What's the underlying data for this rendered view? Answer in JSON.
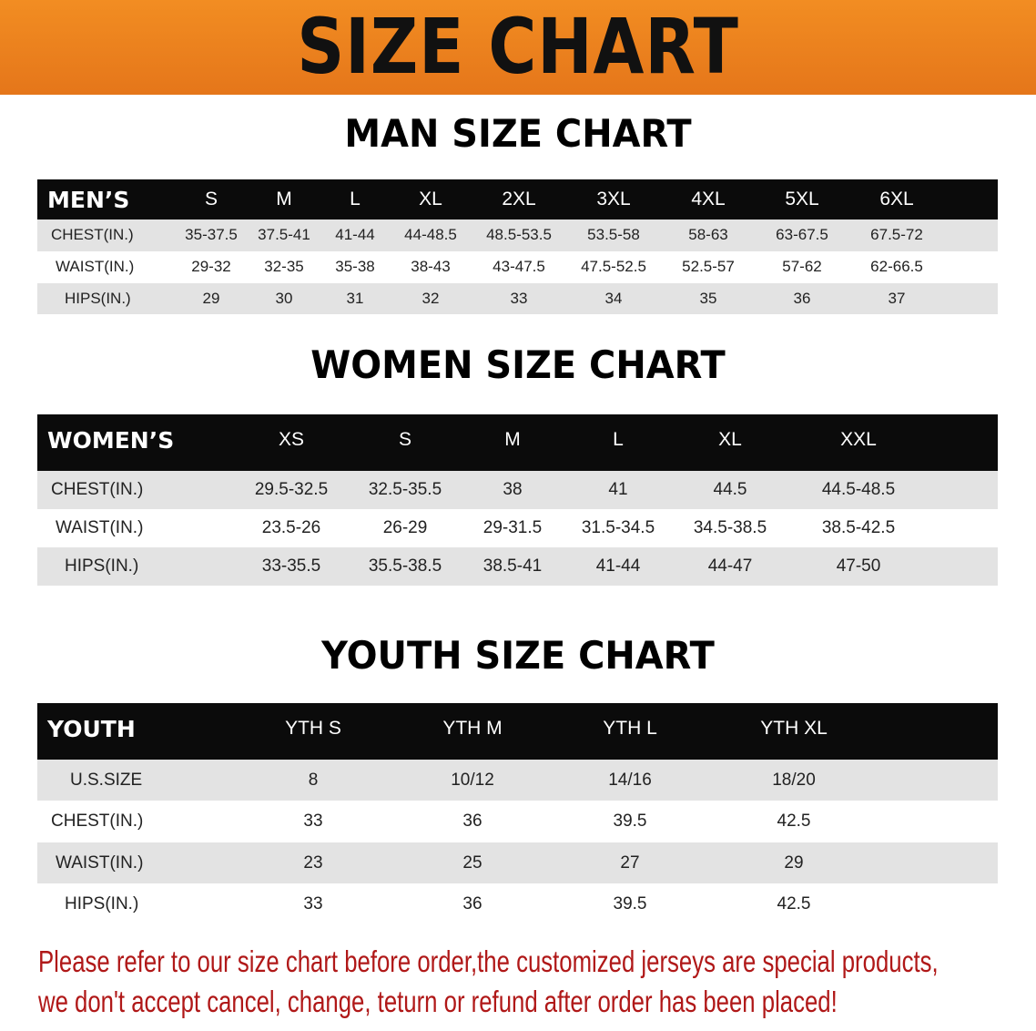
{
  "title": "SIZE CHART",
  "men": {
    "title": "MAN SIZE CHART",
    "header": "MEN’S",
    "sizes": [
      "S",
      "M",
      "L",
      "XL",
      "2XL",
      "3XL",
      "4XL",
      "5XL",
      "6XL"
    ],
    "rows": [
      {
        "label": "CHEST(IN.)",
        "values": [
          "35-37.5",
          "37.5-41",
          "41-44",
          "44-48.5",
          "48.5-53.5",
          "53.5-58",
          "58-63",
          "63-67.5",
          "67.5-72"
        ]
      },
      {
        "label": "WAIST(IN.)",
        "values": [
          "29-32",
          "32-35",
          "35-38",
          "38-43",
          "43-47.5",
          "47.5-52.5",
          "52.5-57",
          "57-62",
          "62-66.5"
        ]
      },
      {
        "label": "HIPS(IN.)",
        "values": [
          "29",
          "30",
          "31",
          "32",
          "33",
          "34",
          "35",
          "36",
          "37"
        ]
      }
    ]
  },
  "women": {
    "title": "WOMEN SIZE CHART",
    "header": "WOMEN’S",
    "sizes": [
      "XS",
      "S",
      "M",
      "L",
      "XL",
      "XXL"
    ],
    "rows": [
      {
        "label": "CHEST(IN.)",
        "values": [
          "29.5-32.5",
          "32.5-35.5",
          "38",
          "41",
          "44.5",
          "44.5-48.5"
        ]
      },
      {
        "label": "WAIST(IN.)",
        "values": [
          "23.5-26",
          "26-29",
          "29-31.5",
          "31.5-34.5",
          "34.5-38.5",
          "38.5-42.5"
        ]
      },
      {
        "label": "HIPS(IN.)",
        "values": [
          "33-35.5",
          "35.5-38.5",
          "38.5-41",
          "41-44",
          "44-47",
          "47-50"
        ]
      }
    ]
  },
  "youth": {
    "title": "YOUTH SIZE CHART",
    "header": "YOUTH",
    "sizes": [
      "YTH S",
      "YTH M",
      "YTH L",
      "YTH XL"
    ],
    "rows": [
      {
        "label": "U.S.SIZE",
        "values": [
          "8",
          "10/12",
          "14/16",
          "18/20"
        ]
      },
      {
        "label": "CHEST(IN.)",
        "values": [
          "33",
          "36",
          "39.5",
          "42.5"
        ]
      },
      {
        "label": "WAIST(IN.)",
        "values": [
          "23",
          "25",
          "27",
          "29"
        ]
      },
      {
        "label": "HIPS(IN.)",
        "values": [
          "33",
          "36",
          "39.5",
          "42.5"
        ]
      }
    ]
  },
  "notice": [
    "Please refer to our size chart before order,the customized jerseys are special products,",
    "we don't accept cancel, change, teturn or refund after order has been placed!"
  ],
  "colors": {
    "banner": "#ef8420",
    "header_row": "#0b0b0b",
    "stripe": "#e3e3e3",
    "notice": "#b01818"
  },
  "chart_data": [
    {
      "type": "table",
      "title": "MAN SIZE CHART",
      "columns": [
        "MEN’S",
        "S",
        "M",
        "L",
        "XL",
        "2XL",
        "3XL",
        "4XL",
        "5XL",
        "6XL"
      ]
    },
    {
      "type": "table",
      "title": "WOMEN SIZE CHART",
      "columns": [
        "WOMEN’S",
        "XS",
        "S",
        "M",
        "L",
        "XL",
        "XXL"
      ]
    },
    {
      "type": "table",
      "title": "YOUTH SIZE CHART",
      "columns": [
        "YOUTH",
        "YTH S",
        "YTH M",
        "YTH L",
        "YTH XL"
      ]
    }
  ]
}
